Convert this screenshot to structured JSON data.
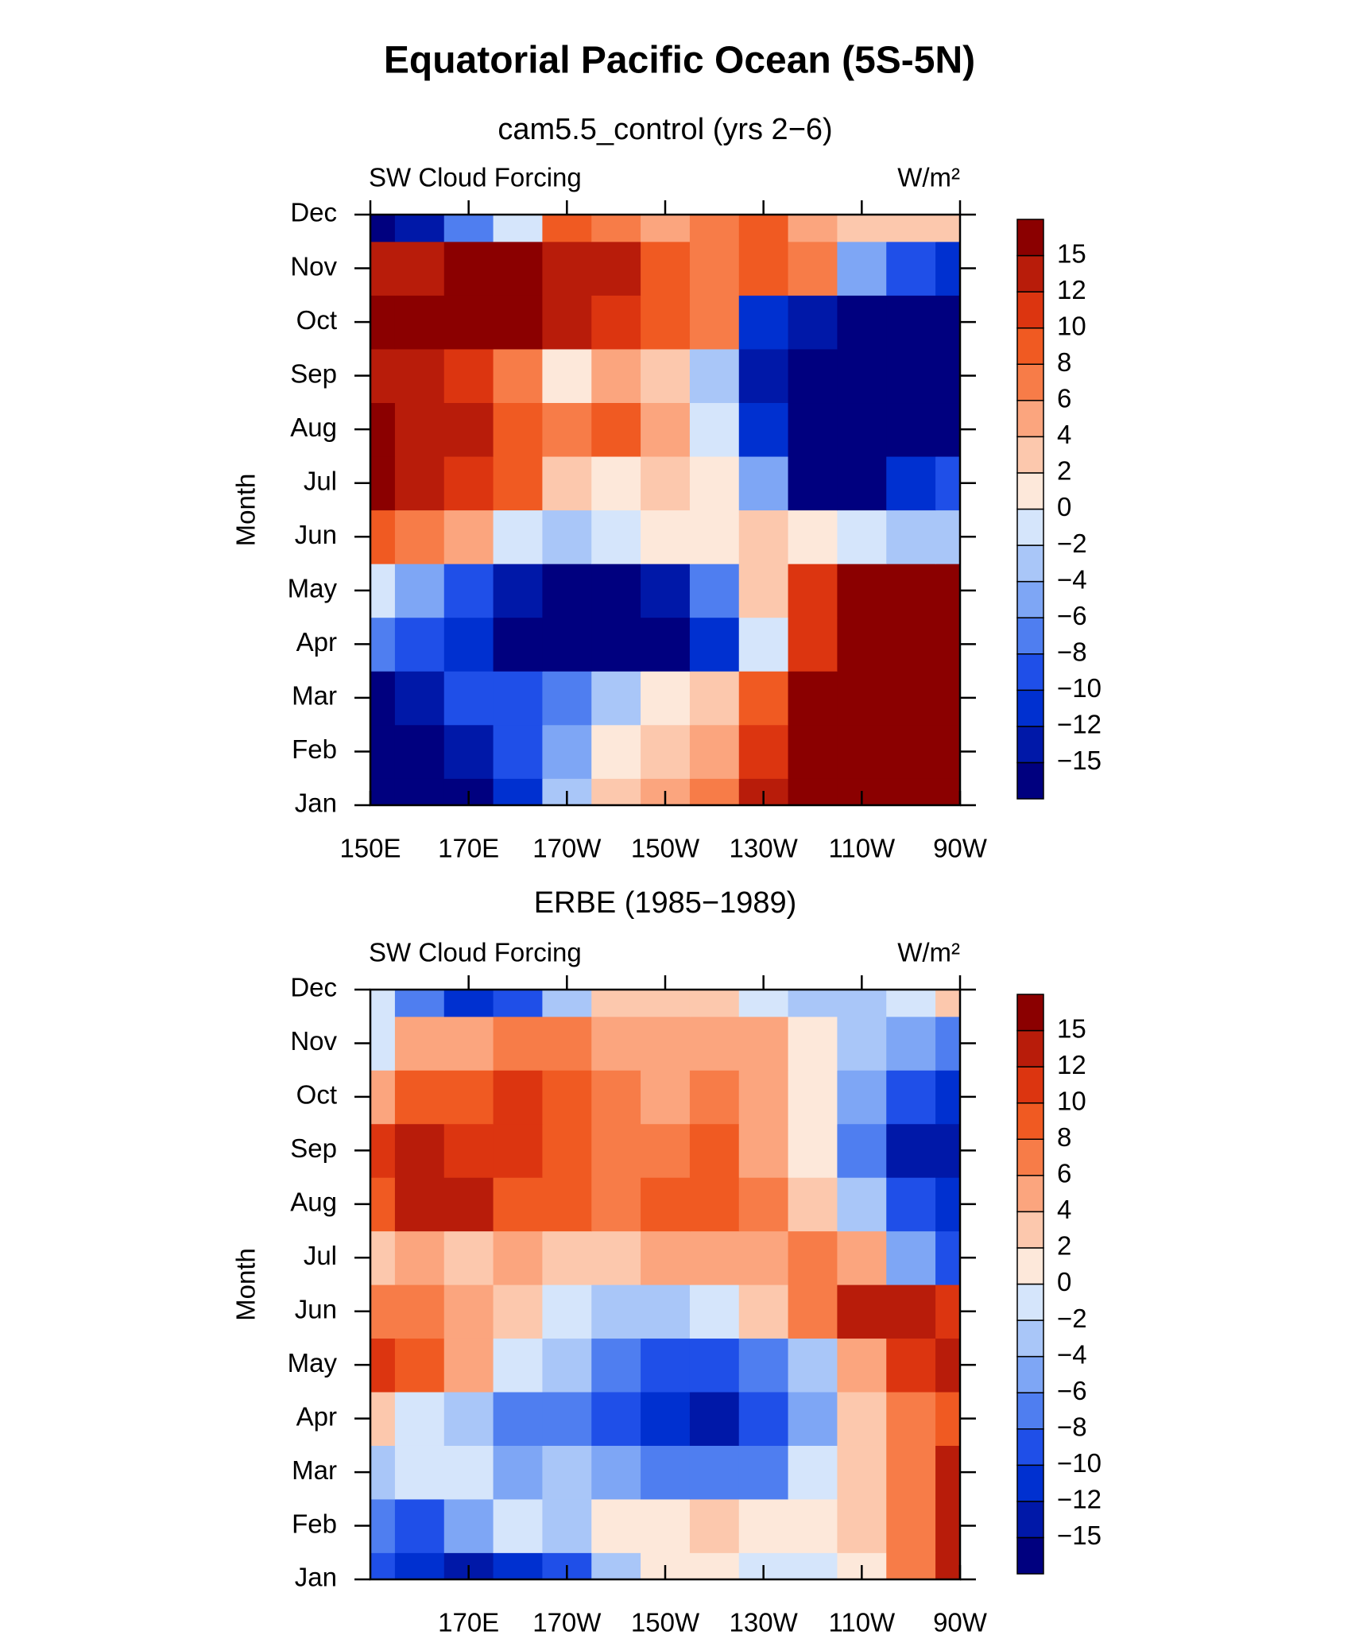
{
  "title": "Equatorial Pacific Ocean (5S-5N)",
  "chart_data": [
    {
      "type": "contour",
      "subtitle": "cam5.5_control (yrs 2−6)",
      "left_label": "SW Cloud Forcing",
      "right_label": "W/m²",
      "y_label": "Month",
      "categories": [
        "Jan",
        "Feb",
        "Mar",
        "Apr",
        "May",
        "Jun",
        "Jul",
        "Aug",
        "Sep",
        "Oct",
        "Nov",
        "Dec"
      ],
      "x": [
        150,
        160,
        170,
        180,
        190,
        200,
        210,
        220,
        230,
        240,
        250,
        260,
        270
      ],
      "xlim": [
        150,
        270
      ],
      "xticks": [
        {
          "value": 150,
          "label": "150E"
        },
        {
          "value": 170,
          "label": "170E"
        },
        {
          "value": 190,
          "label": "170W"
        },
        {
          "value": 210,
          "label": "150W"
        },
        {
          "value": 230,
          "label": "130W"
        },
        {
          "value": 250,
          "label": "110W"
        },
        {
          "value": 270,
          "label": "90W"
        }
      ],
      "z": [
        [
          -16,
          -16,
          -16,
          -12,
          -4,
          2,
          4,
          6,
          12,
          16,
          16,
          16,
          16
        ],
        [
          -16,
          -16,
          -14,
          -10,
          -6,
          0,
          3,
          5,
          10,
          16,
          16,
          16,
          16
        ],
        [
          -16,
          -13,
          -10,
          -9,
          -8,
          -4,
          0,
          3,
          8,
          16,
          16,
          16,
          16
        ],
        [
          -8,
          -10,
          -12,
          -16,
          -16,
          -16,
          -16,
          -12,
          -2,
          10,
          16,
          16,
          16
        ],
        [
          -2,
          -6,
          -10,
          -14,
          -16,
          -16,
          -14,
          -8,
          2,
          10,
          16,
          16,
          16
        ],
        [
          8,
          6,
          4,
          -2,
          -4,
          -2,
          0,
          1,
          2,
          1,
          -2,
          -4,
          -4
        ],
        [
          16,
          14,
          10,
          8,
          2,
          1,
          2,
          0,
          -6,
          -16,
          -16,
          -12,
          -10
        ],
        [
          16,
          13,
          12,
          8,
          6,
          8,
          4,
          -2,
          -12,
          -16,
          -16,
          -16,
          -16
        ],
        [
          13,
          12,
          10,
          6,
          1,
          4,
          2,
          -4,
          -14,
          -16,
          -16,
          -16,
          -16
        ],
        [
          16,
          16,
          16,
          16,
          13,
          10,
          8,
          6,
          -12,
          -14,
          -16,
          -16,
          -16
        ],
        [
          14,
          12,
          16,
          16,
          14,
          12,
          8,
          6,
          8,
          6,
          -6,
          -10,
          -12
        ],
        [
          -16,
          -14,
          -8,
          -2,
          8,
          6,
          4,
          6,
          8,
          4,
          2,
          2,
          2
        ]
      ],
      "levels": [
        {
          "value": -15,
          "label": "−15"
        },
        {
          "value": -12,
          "label": "−12"
        },
        {
          "value": -10,
          "label": "−10"
        },
        {
          "value": -8,
          "label": "−8"
        },
        {
          "value": -6,
          "label": "−6"
        },
        {
          "value": -4,
          "label": "−4"
        },
        {
          "value": -2,
          "label": "−2"
        },
        0,
        2,
        4,
        6,
        8,
        10,
        12,
        15
      ],
      "colors": [
        "#00007f",
        "#0018a8",
        "#0030d0",
        "#1f4fe8",
        "#4f7ef0",
        "#7ea6f5",
        "#a9c6f8",
        "#d5e5fb",
        "#fde8da",
        "#fcc8ad",
        "#fba57e",
        "#f77c48",
        "#f05a22",
        "#dc3510",
        "#b81c0a",
        "#8b0000"
      ]
    },
    {
      "type": "contour",
      "subtitle": "ERBE (1985−1989)",
      "left_label": "SW Cloud Forcing",
      "right_label": "W/m²",
      "y_label": "Month",
      "categories": [
        "Jan",
        "Feb",
        "Mar",
        "Apr",
        "May",
        "Jun",
        "Jul",
        "Aug",
        "Sep",
        "Oct",
        "Nov",
        "Dec"
      ],
      "x": [
        150,
        160,
        170,
        180,
        190,
        200,
        210,
        220,
        230,
        240,
        250,
        260,
        270
      ],
      "xlim": [
        150,
        270
      ],
      "xticks": [
        {
          "value": 170,
          "label": "170E"
        },
        {
          "value": 190,
          "label": "170W"
        },
        {
          "value": 210,
          "label": "150W"
        },
        {
          "value": 230,
          "label": "130W"
        },
        {
          "value": 250,
          "label": "110W"
        },
        {
          "value": 270,
          "label": "90W"
        }
      ],
      "z": [
        [
          -10,
          -12,
          -14,
          -12,
          -10,
          -4,
          0,
          0,
          -2,
          -2,
          0,
          6,
          12
        ],
        [
          -8,
          -10,
          -6,
          -2,
          -4,
          0,
          1,
          2,
          0,
          0,
          2,
          6,
          14
        ],
        [
          -4,
          -2,
          -2,
          -6,
          -4,
          -6,
          -8,
          -8,
          -8,
          -2,
          2,
          6,
          12
        ],
        [
          2,
          -2,
          -4,
          -8,
          -8,
          -10,
          -12,
          -14,
          -10,
          -6,
          2,
          6,
          8
        ],
        [
          10,
          8,
          4,
          -2,
          -4,
          -8,
          -10,
          -10,
          -8,
          -4,
          4,
          10,
          12
        ],
        [
          6,
          6,
          4,
          2,
          -2,
          -4,
          -4,
          -2,
          2,
          6,
          12,
          12,
          10
        ],
        [
          2,
          4,
          2,
          4,
          2,
          2,
          4,
          4,
          4,
          6,
          4,
          -6,
          -10
        ],
        [
          8,
          12,
          12,
          8,
          8,
          6,
          8,
          8,
          6,
          2,
          -4,
          -10,
          -12
        ],
        [
          10,
          12,
          10,
          10,
          8,
          6,
          6,
          8,
          4,
          0,
          -8,
          -14,
          -14
        ],
        [
          4,
          8,
          8,
          10,
          8,
          6,
          4,
          6,
          4,
          0,
          -6,
          -10,
          -12
        ],
        [
          -2,
          4,
          4,
          6,
          6,
          4,
          4,
          4,
          4,
          0,
          -4,
          -6,
          -8
        ],
        [
          -2,
          -8,
          -12,
          -10,
          -4,
          2,
          2,
          2,
          -2,
          -4,
          -4,
          -2,
          2
        ]
      ],
      "levels": [
        {
          "value": -15,
          "label": "−15"
        },
        {
          "value": -12,
          "label": "−12"
        },
        {
          "value": -10,
          "label": "−10"
        },
        {
          "value": -8,
          "label": "−8"
        },
        {
          "value": -6,
          "label": "−6"
        },
        {
          "value": -4,
          "label": "−4"
        },
        {
          "value": -2,
          "label": "−2"
        },
        0,
        2,
        4,
        6,
        8,
        10,
        12,
        15
      ],
      "colors": [
        "#00007f",
        "#0018a8",
        "#0030d0",
        "#1f4fe8",
        "#4f7ef0",
        "#7ea6f5",
        "#a9c6f8",
        "#d5e5fb",
        "#fde8da",
        "#fcc8ad",
        "#fba57e",
        "#f77c48",
        "#f05a22",
        "#dc3510",
        "#b81c0a",
        "#8b0000"
      ]
    }
  ]
}
